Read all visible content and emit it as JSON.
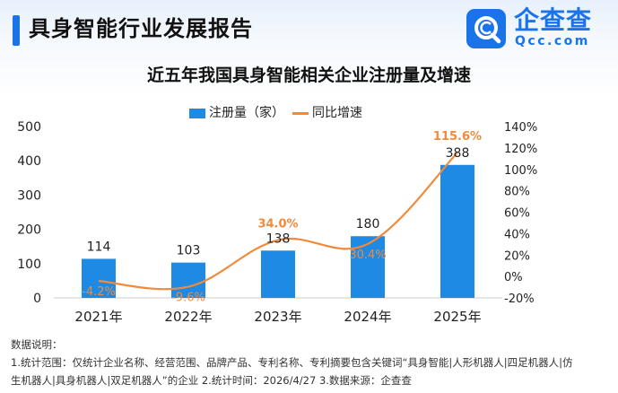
{
  "header": {
    "title": "具身智能行业发展报告",
    "brand": "企查查",
    "brand_domain": "Qcc.com"
  },
  "chart_data": {
    "type": "bar",
    "title": "近五年我国具身智能相关企业注册量及增速",
    "categories": [
      "2021年",
      "2022年",
      "2023年",
      "2024年",
      "2025年"
    ],
    "series": [
      {
        "name": "注册量（家）",
        "type": "bar",
        "axis": "left",
        "values": [
          114,
          103,
          138,
          180,
          388
        ],
        "labels": [
          "114",
          "103",
          "138",
          "180",
          "388"
        ],
        "color": "#1e8ae3"
      },
      {
        "name": "同比增速",
        "type": "line",
        "axis": "right",
        "values": [
          -4.2,
          -9.6,
          34.0,
          30.4,
          115.6
        ],
        "labels": [
          "-4.2%",
          "-9.6%",
          "34.0%",
          "30.4%",
          "115.6%"
        ],
        "color": "#f08a3c"
      }
    ],
    "y_left": {
      "min": 0,
      "max": 500,
      "ticks": [
        "0",
        "100",
        "200",
        "300",
        "400",
        "500"
      ]
    },
    "y_right": {
      "min": -20,
      "max": 140,
      "ticks": [
        "-20%",
        "0%",
        "20%",
        "40%",
        "60%",
        "80%",
        "100%",
        "120%",
        "140%"
      ]
    },
    "grid": false,
    "legend_position": "top"
  },
  "notes": {
    "heading": "数据说明：",
    "line1": "1.统计范围：仅统计企业名称、经营范围、品牌产品、专利名称、专利摘要包含关键词“具身智能|人形机器人|四足机器人|仿",
    "line2": "生机器人|具身机器人|双足机器人”的企业    2.统计时间：2026/4/27    3.数据来源：企查查"
  }
}
